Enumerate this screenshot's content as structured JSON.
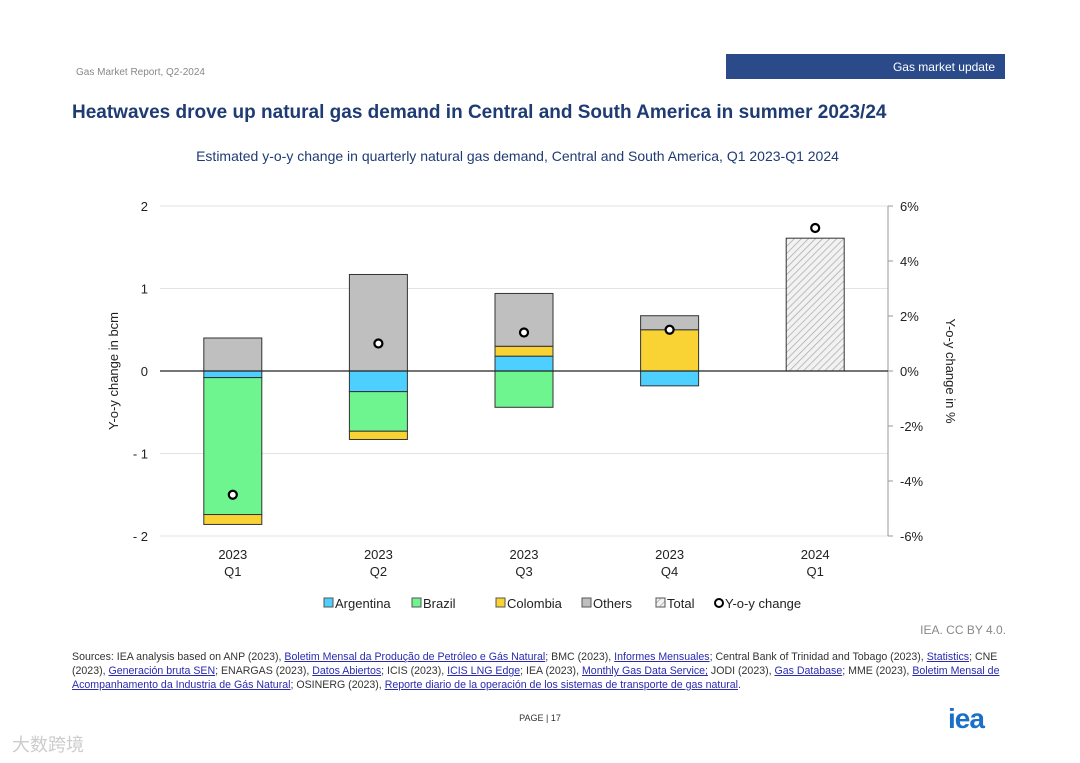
{
  "header": {
    "report": "Gas Market Report, Q2-2024",
    "badge": "Gas market update"
  },
  "title": "Heatwaves drove up natural gas demand in Central and South America in summer 2023/24",
  "chart_data": {
    "type": "bar",
    "title": "Estimated y-o-y change in quarterly natural gas demand, Central and South America, Q1 2023-Q1 2024",
    "categories": [
      [
        "2023",
        "Q1"
      ],
      [
        "2023",
        "Q2"
      ],
      [
        "2023",
        "Q3"
      ],
      [
        "2023",
        "Q4"
      ],
      [
        "2024",
        "Q1"
      ]
    ],
    "ylabel": "Y-o-y change in bcm",
    "y2label": "Y-o-y change in %",
    "ylim": [
      -2,
      2
    ],
    "y2lim": [
      -6,
      6
    ],
    "yticks": [
      "2",
      "1",
      "0",
      "- 1",
      "- 2"
    ],
    "y2ticks": [
      "6%",
      "4%",
      "2%",
      "0%",
      "-2%",
      "-4%",
      "-6%"
    ],
    "series": [
      {
        "name": "Argentina",
        "color": "#4dcfff",
        "values": [
          -0.08,
          -0.25,
          0.18,
          -0.18,
          null
        ]
      },
      {
        "name": "Brazil",
        "color": "#6ef590",
        "values": [
          -1.66,
          -0.48,
          -0.44,
          0,
          null
        ]
      },
      {
        "name": "Colombia",
        "color": "#f9d234",
        "values": [
          -0.12,
          -0.1,
          0.12,
          0.5,
          null
        ]
      },
      {
        "name": "Others",
        "color": "#bfbfbf",
        "values": [
          0.4,
          1.17,
          0.64,
          0.17,
          null
        ]
      },
      {
        "name": "Total",
        "color": "hatched",
        "values": [
          null,
          null,
          null,
          null,
          1.61
        ]
      }
    ],
    "line": {
      "name": "Y-o-y change",
      "axis": "right",
      "values": [
        -4.5,
        1.0,
        1.4,
        1.5,
        5.2
      ]
    }
  },
  "credit": "IEA. CC BY 4.0.",
  "sources": {
    "t0": "Sources: IEA analysis based on ANP (2023), ",
    "l0": "Boletim Mensal da Produção de Petróleo e Gás Natural",
    "t1": "; BMC (2023), ",
    "l1": "Informes Mensuales",
    "t2": "; Central Bank of Trinidad and Tobago (2023), ",
    "l2": "Statistics",
    "t3": "; CNE (2023), ",
    "l3": "Generación bruta SEN",
    "t4": "; ENARGAS (2023), ",
    "l4": "Datos Abiertos",
    "t5": "; ICIS (2023), ",
    "l5": "ICIS LNG Edge",
    "t6": "; IEA (2023), ",
    "l6": "Monthly Gas Data Service;",
    "t7": " JODI (2023), ",
    "l7": "Gas Database",
    "t8": "; MME (2023), ",
    "l8": "Boletim Mensal de Acompanhamento da Industria de Gás Natural",
    "t9": "; OSINERG (2023), ",
    "l9": "Reporte diario de la operación de los sistemas de transporte de gas natural",
    "t10": "."
  },
  "page": "PAGE | 17",
  "logo": "iea",
  "watermark": "大数跨境"
}
